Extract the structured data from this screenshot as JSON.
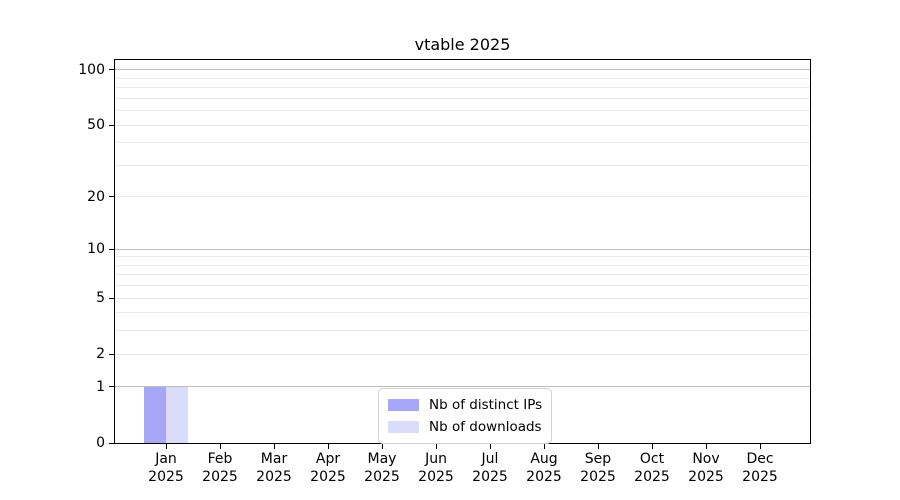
{
  "chart_data": {
    "type": "bar",
    "title": "vtable 2025",
    "year_label": "2025",
    "categories": [
      "Jan",
      "Feb",
      "Mar",
      "Apr",
      "May",
      "Jun",
      "Jul",
      "Aug",
      "Sep",
      "Oct",
      "Nov",
      "Dec"
    ],
    "series": [
      {
        "name": "Nb of distinct IPs",
        "color": "#a7a7f7",
        "values": [
          1,
          0,
          0,
          0,
          0,
          0,
          0,
          0,
          0,
          0,
          0,
          0
        ]
      },
      {
        "name": "Nb of downloads",
        "color": "#dbdbfa",
        "values": [
          1,
          0,
          0,
          0,
          0,
          0,
          0,
          0,
          0,
          0,
          0,
          0
        ]
      }
    ],
    "yscale": "log1p",
    "ylim": [
      0,
      113
    ],
    "yticks_labeled": [
      0,
      1,
      2,
      5,
      10,
      20,
      50,
      100
    ],
    "gridlines_major": [
      1,
      10,
      100
    ],
    "gridlines_minor": [
      2,
      3,
      4,
      5,
      6,
      7,
      8,
      9,
      20,
      30,
      40,
      50,
      60,
      70,
      80,
      90
    ],
    "grid": "horizontal major+minor",
    "legend_position": "inside lower-center",
    "colors": {
      "major_grid": "#bdbdbd",
      "minor_grid": "#ebebeb",
      "axis": "#000000",
      "background": "#ffffff"
    }
  }
}
